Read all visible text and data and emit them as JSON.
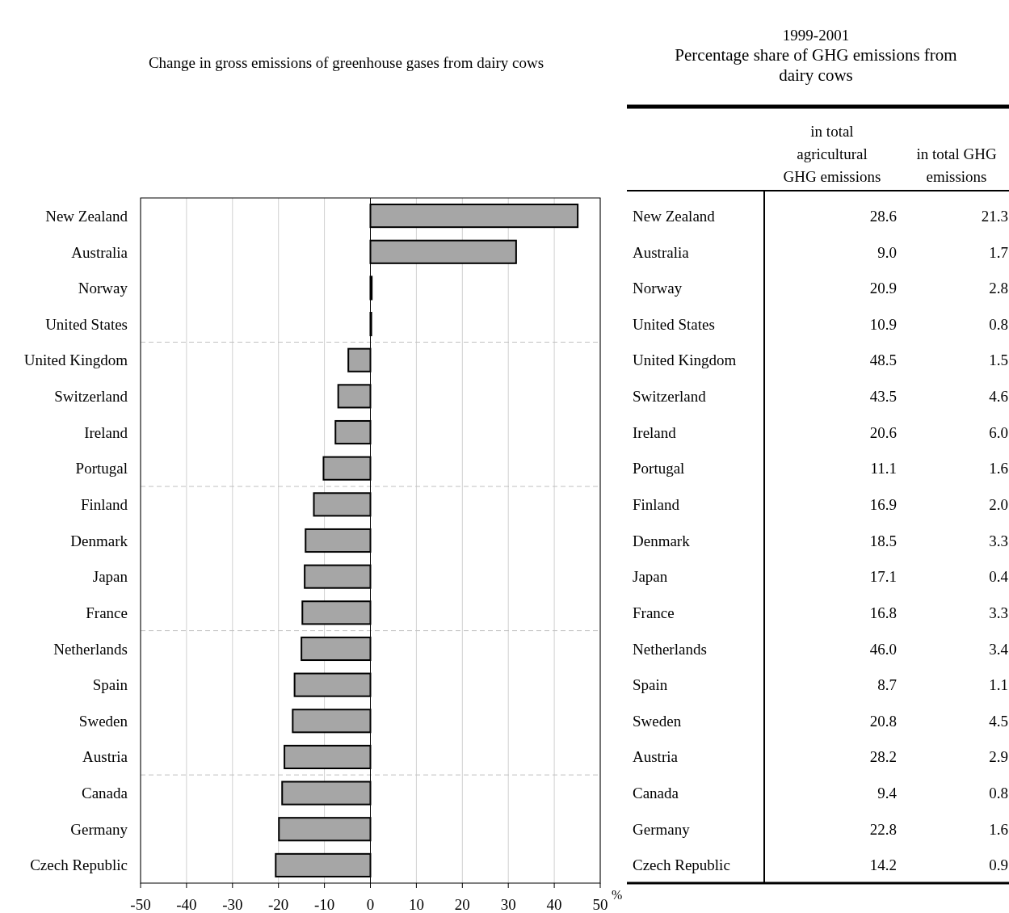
{
  "chart_data": [
    {
      "type": "bar",
      "orientation": "horizontal",
      "title": "Change in gross emissions of greenhouse gases from dairy cows",
      "xlabel": "%",
      "categories": [
        "New Zealand",
        "Australia",
        "Norway",
        "United States",
        "United Kingdom",
        "Switzerland",
        "Ireland",
        "Portugal",
        "Finland",
        "Denmark",
        "Japan",
        "France",
        "Netherlands",
        "Spain",
        "Sweden",
        "Austria",
        "Canada",
        "Germany",
        "Czech Republic"
      ],
      "values": [
        45.1,
        31.7,
        0.3,
        0.2,
        -4.8,
        -7.0,
        -7.6,
        -10.2,
        -12.3,
        -14.1,
        -14.3,
        -14.8,
        -15.0,
        -16.5,
        -16.9,
        -18.7,
        -19.2,
        -19.9,
        -20.6
      ],
      "color": "#a6a6a6",
      "xlim": [
        -50,
        50
      ],
      "xticks": [
        -50,
        -40,
        -30,
        -20,
        -10,
        0,
        10,
        20,
        30,
        40,
        50
      ],
      "grid": "x"
    },
    {
      "type": "other",
      "title": "1999-2001",
      "subtitle": "Percentage share of GHG emissions from dairy cows",
      "categories": [
        "New Zealand",
        "Australia",
        "Norway",
        "United States",
        "United Kingdom",
        "Switzerland",
        "Ireland",
        "Portugal",
        "Finland",
        "Denmark",
        "Japan",
        "France",
        "Netherlands",
        "Spain",
        "Sweden",
        "Austria",
        "Canada",
        "Germany",
        "Czech Republic"
      ],
      "series": [
        {
          "name": "in total agricultural GHG emissions",
          "values": [
            28.6,
            9.0,
            20.9,
            10.9,
            48.5,
            43.5,
            20.6,
            11.1,
            16.9,
            18.5,
            17.1,
            16.8,
            46.0,
            8.7,
            20.8,
            28.2,
            9.4,
            22.8,
            14.2
          ],
          "value_labels": [
            "28.6",
            "9.0",
            "20.9",
            "10.9",
            "48.5",
            "43.5",
            "20.6",
            "11.1",
            "16.9",
            "18.5",
            "17.1",
            "16.8",
            "46.0",
            "8.7",
            "20.8",
            "28.2",
            "9.4",
            "22.8",
            "14.2"
          ]
        },
        {
          "name": "in total GHG emissions",
          "values": [
            21.3,
            1.7,
            2.8,
            0.8,
            1.5,
            4.6,
            6.0,
            1.6,
            2.0,
            3.3,
            0.4,
            3.3,
            3.4,
            1.1,
            4.5,
            2.9,
            0.8,
            1.6,
            0.9
          ],
          "value_labels": [
            "21.3",
            "1.7",
            "2.8",
            "0.8",
            "1.5",
            "4.6",
            "6.0",
            "1.6",
            "2.0",
            "3.3",
            "0.4",
            "3.3",
            "3.4",
            "1.1",
            "4.5",
            "2.9",
            "0.8",
            "1.6",
            "0.9"
          ]
        }
      ]
    }
  ]
}
